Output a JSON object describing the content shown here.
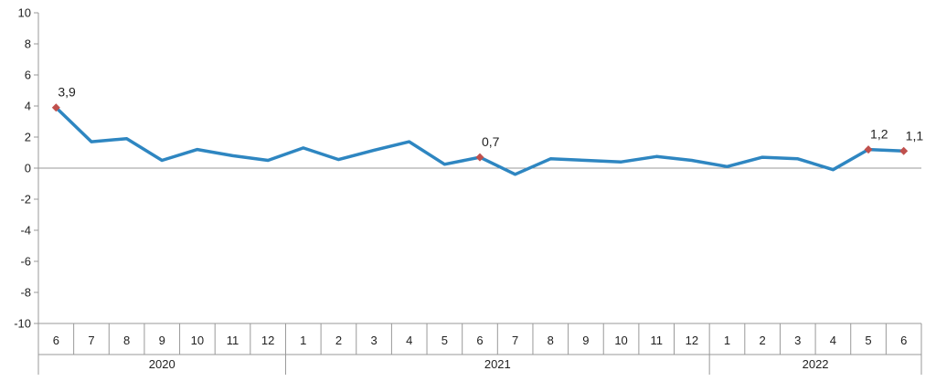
{
  "chart_data": {
    "type": "line",
    "ylim": [
      -10,
      10
    ],
    "yticks": [
      -10,
      -8,
      -6,
      -4,
      -2,
      0,
      2,
      4,
      6,
      8,
      10
    ],
    "x": [
      {
        "month": "6",
        "year": "2020"
      },
      {
        "month": "7",
        "year": "2020"
      },
      {
        "month": "8",
        "year": "2020"
      },
      {
        "month": "9",
        "year": "2020"
      },
      {
        "month": "10",
        "year": "2020"
      },
      {
        "month": "11",
        "year": "2020"
      },
      {
        "month": "12",
        "year": "2020"
      },
      {
        "month": "1",
        "year": "2021"
      },
      {
        "month": "2",
        "year": "2021"
      },
      {
        "month": "3",
        "year": "2021"
      },
      {
        "month": "4",
        "year": "2021"
      },
      {
        "month": "5",
        "year": "2021"
      },
      {
        "month": "6",
        "year": "2021"
      },
      {
        "month": "7",
        "year": "2021"
      },
      {
        "month": "8",
        "year": "2021"
      },
      {
        "month": "9",
        "year": "2021"
      },
      {
        "month": "10",
        "year": "2021"
      },
      {
        "month": "11",
        "year": "2021"
      },
      {
        "month": "12",
        "year": "2021"
      },
      {
        "month": "1",
        "year": "2022"
      },
      {
        "month": "2",
        "year": "2022"
      },
      {
        "month": "3",
        "year": "2022"
      },
      {
        "month": "4",
        "year": "2022"
      },
      {
        "month": "5",
        "year": "2022"
      },
      {
        "month": "6",
        "year": "2022"
      }
    ],
    "years": [
      "2020",
      "2021",
      "2022"
    ],
    "series": [
      {
        "values": [
          3.9,
          1.7,
          1.9,
          0.5,
          1.2,
          0.8,
          0.5,
          1.3,
          0.55,
          1.15,
          1.7,
          0.25,
          0.7,
          -0.4,
          0.6,
          0.5,
          0.4,
          0.75,
          0.5,
          0.1,
          0.7,
          0.6,
          -0.1,
          1.2,
          1.1
        ],
        "color": "#2e86c1",
        "marker_color": "#c0504d"
      }
    ],
    "annotations": [
      {
        "index": 0,
        "text": "3,9"
      },
      {
        "index": 12,
        "text": "0,7"
      },
      {
        "index": 23,
        "text": "1,2"
      },
      {
        "index": 24,
        "text": "1,1"
      }
    ]
  }
}
